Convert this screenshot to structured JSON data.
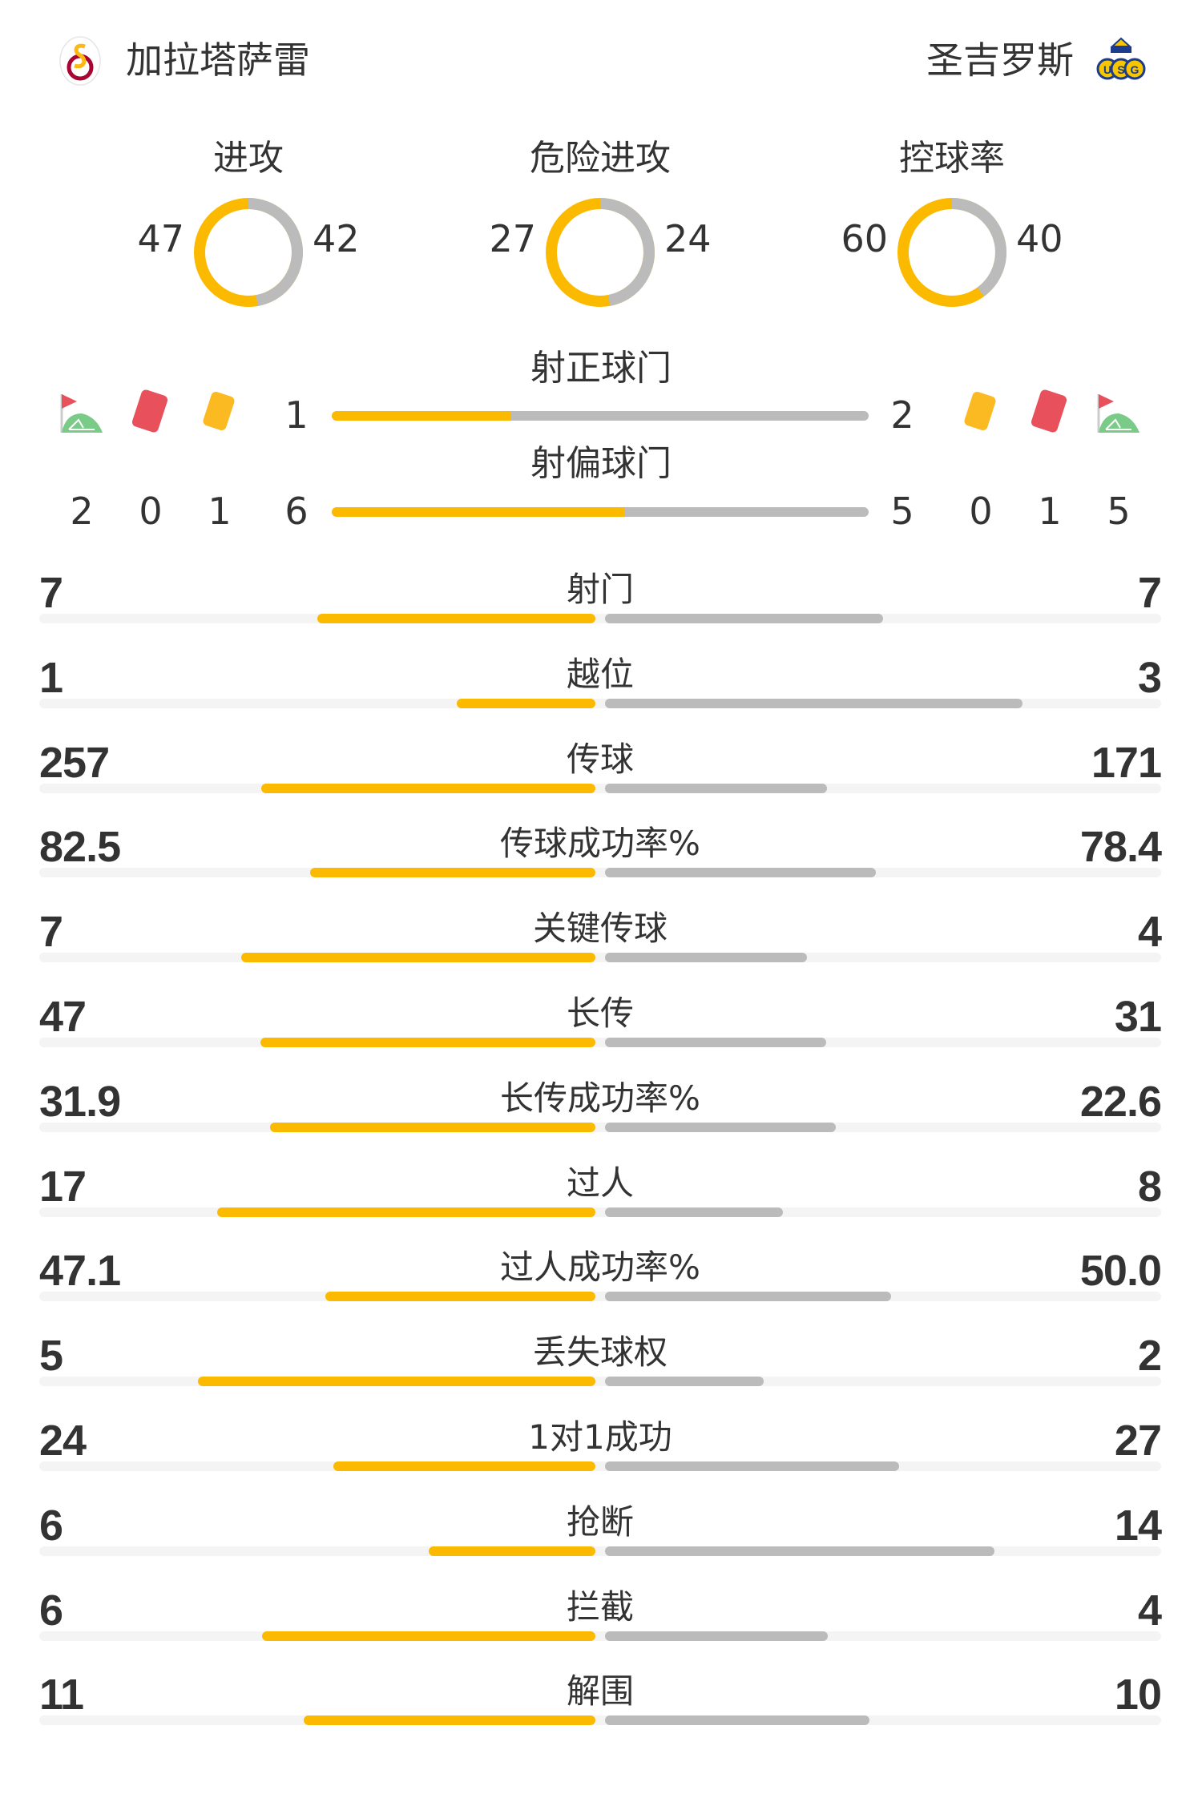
{
  "colors": {
    "home": "#FBBA00",
    "away": "#BBBBBB",
    "track": "#F4F4F4",
    "text": "#333333"
  },
  "header": {
    "home": {
      "name": "加拉塔萨雷",
      "logo_icon": "galatasaray-crest-icon",
      "logo_text": "1905"
    },
    "away": {
      "name": "圣吉罗斯",
      "logo_icon": "union-saint-gilloise-crest-icon",
      "logo_text": "USG"
    }
  },
  "donuts": [
    {
      "title": "进攻",
      "home": "47",
      "away": "42"
    },
    {
      "title": "危险进攻",
      "home": "27",
      "away": "24"
    },
    {
      "title": "控球率",
      "home": "60",
      "away": "40"
    }
  ],
  "shots_on": {
    "title": "射正球门",
    "home": "1",
    "away": "2"
  },
  "shots_off": {
    "title": "射偏球门",
    "home": "6",
    "away": "5"
  },
  "events": {
    "icons": [
      "corner-flag-icon",
      "red-card-icon",
      "yellow-card-icon"
    ],
    "home": {
      "corners": "2",
      "red": "0",
      "yellow": "1"
    },
    "away": {
      "corners": "5",
      "red": "1",
      "yellow": "0"
    }
  },
  "stats": [
    {
      "label": "射门",
      "home": "7",
      "away": "7"
    },
    {
      "label": "越位",
      "home": "1",
      "away": "3"
    },
    {
      "label": "传球",
      "home": "257",
      "away": "171"
    },
    {
      "label": "传球成功率%",
      "home": "82.5",
      "away": "78.4"
    },
    {
      "label": "关键传球",
      "home": "7",
      "away": "4"
    },
    {
      "label": "长传",
      "home": "47",
      "away": "31"
    },
    {
      "label": "长传成功率%",
      "home": "31.9",
      "away": "22.6"
    },
    {
      "label": "过人",
      "home": "17",
      "away": "8"
    },
    {
      "label": "过人成功率%",
      "home": "47.1",
      "away": "50.0"
    },
    {
      "label": "丢失球权",
      "home": "5",
      "away": "2"
    },
    {
      "label": "1对1成功",
      "home": "24",
      "away": "27"
    },
    {
      "label": "抢断",
      "home": "6",
      "away": "14"
    },
    {
      "label": "拦截",
      "home": "6",
      "away": "4"
    },
    {
      "label": "解围",
      "home": "11",
      "away": "10"
    }
  ]
}
